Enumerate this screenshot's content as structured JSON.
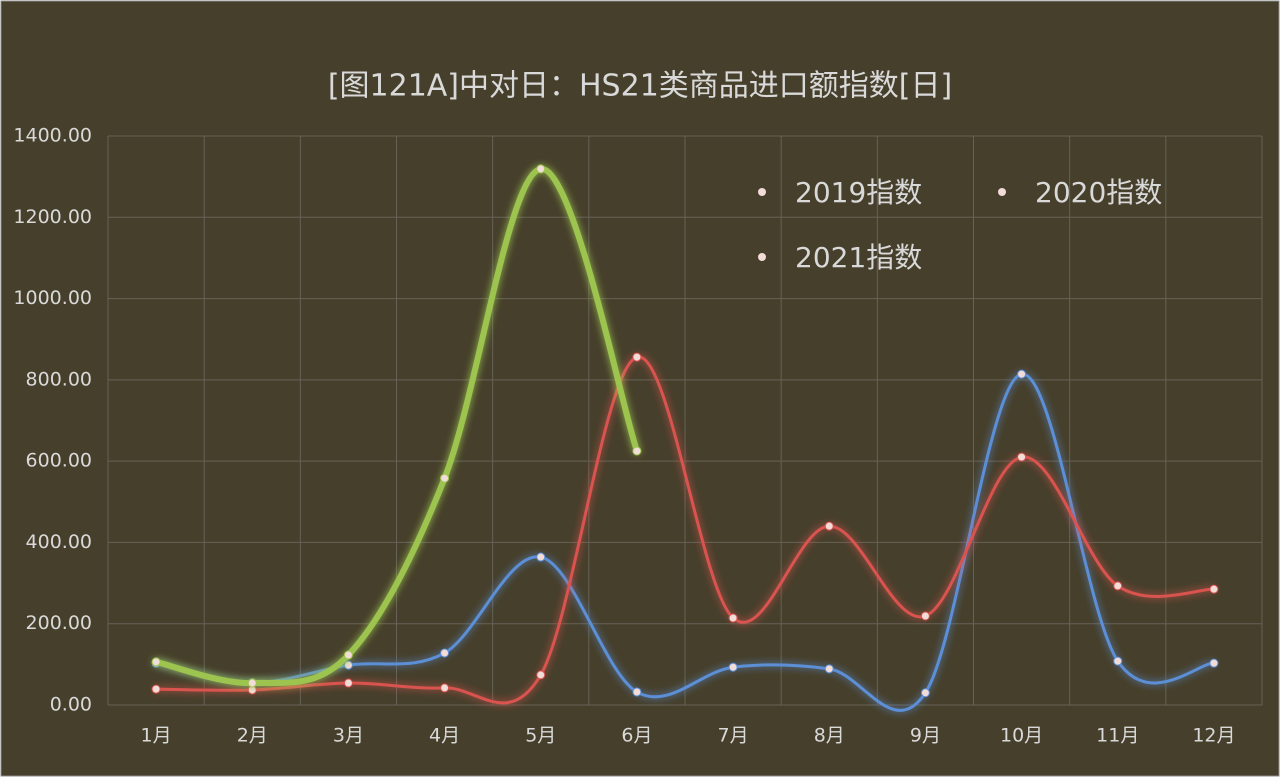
{
  "chart_data": {
    "type": "line",
    "title": "[图121A]中对日：HS21类商品进口额指数[日]",
    "categories": [
      "1月",
      "2月",
      "3月",
      "4月",
      "5月",
      "6月",
      "7月",
      "8月",
      "9月",
      "10月",
      "11月",
      "12月"
    ],
    "series": [
      {
        "name": "2019指数",
        "color": "#5b8fd6",
        "width": 3,
        "values": [
          103,
          55,
          98,
          128,
          364,
          32,
          93,
          89,
          30,
          814,
          108,
          103
        ]
      },
      {
        "name": "2020指数",
        "color": "#d9534f",
        "width": 3,
        "values": [
          39,
          37,
          54,
          42,
          74,
          856,
          214,
          440,
          219,
          610,
          293,
          285
        ]
      },
      {
        "name": "2021指数",
        "color": "#9dc450",
        "width": 6,
        "values": [
          106,
          54,
          123,
          558,
          1319,
          625,
          null,
          null,
          null,
          null,
          null,
          null
        ]
      }
    ],
    "ylim": [
      0,
      1400
    ],
    "yticks": [
      {
        "value": 0,
        "label": "0.00"
      },
      {
        "value": 200,
        "label": "200.00"
      },
      {
        "value": 400,
        "label": "400.00"
      },
      {
        "value": 600,
        "label": "600.00"
      },
      {
        "value": 800,
        "label": "800.00"
      },
      {
        "value": 1000,
        "label": "1000.00"
      },
      {
        "value": 1200,
        "label": "1200.00"
      },
      {
        "value": 1400,
        "label": "1400.00"
      }
    ],
    "grid": true,
    "legend": "upper right"
  }
}
